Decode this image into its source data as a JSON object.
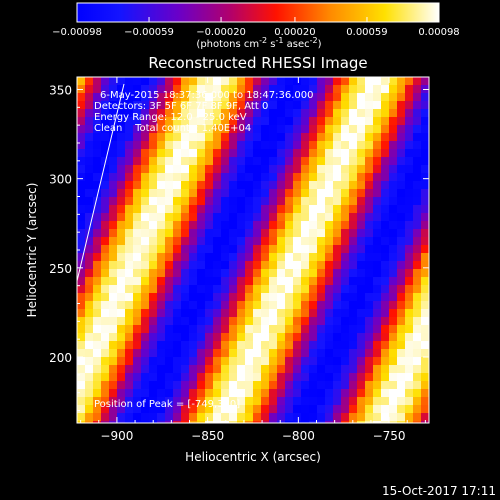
{
  "chart_data": {
    "type": "heatmap",
    "title": "Reconstructed RHESSI Image",
    "xlabel": "Heliocentric X (arcsec)",
    "ylabel": "Heliocentric Y (arcsec)",
    "xlim": [
      -922,
      -728
    ],
    "ylim": [
      163,
      357
    ],
    "xticks": [
      -900,
      -850,
      -800,
      -750
    ],
    "yticks": [
      200,
      250,
      300,
      350
    ],
    "colorbar": {
      "min": -0.00098,
      "max": 0.00098,
      "ticks": [
        "-0.00098",
        "-0.00059",
        "-0.00020",
        "0.00020",
        "0.00059",
        "0.00098"
      ],
      "tick_values": [
        -0.00098,
        -0.00059,
        -0.0002,
        0.0002,
        0.00059,
        0.00098
      ],
      "unit_label": "(photons cm^-2 s^-1 asec^-2)",
      "colormap": "blue-purple-red-orange-yellow-white"
    },
    "annotations": [
      "6-May-2015 18:37:36.000 to 18:47:36.000",
      "Detectors: 3F 5F 6F 7F 8F 9F, Att 0",
      "Energy Range: 12.0 - 25.0 keV",
      "Clean    Total counts: 1.40E+04"
    ],
    "peak_label": "Position of Peak = [-749,320]",
    "peak": [
      -749,
      320
    ],
    "pattern": "diagonal fringes running lower-left to upper-right, alternating positive (yellow/white) and negative (blue/purple)"
  },
  "footer": {
    "date": "15-Oct-2017 17:11"
  },
  "colors": {
    "background": "#000000",
    "text": "#ffffff"
  }
}
